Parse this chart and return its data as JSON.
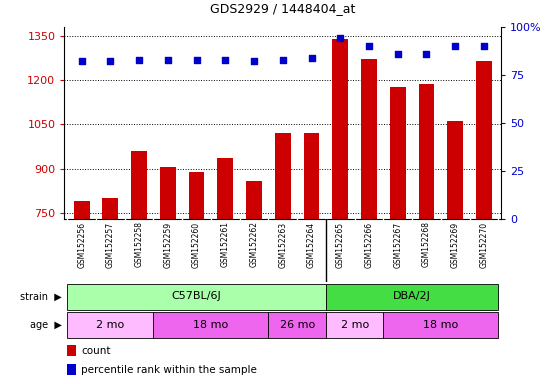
{
  "title": "GDS2929 / 1448404_at",
  "samples": [
    "GSM152256",
    "GSM152257",
    "GSM152258",
    "GSM152259",
    "GSM152260",
    "GSM152261",
    "GSM152262",
    "GSM152263",
    "GSM152264",
    "GSM152265",
    "GSM152266",
    "GSM152267",
    "GSM152268",
    "GSM152269",
    "GSM152270"
  ],
  "counts": [
    790,
    800,
    960,
    905,
    888,
    935,
    858,
    1020,
    1020,
    1340,
    1270,
    1175,
    1185,
    1060,
    1265
  ],
  "percentiles": [
    82,
    82,
    83,
    83,
    83,
    83,
    82,
    83,
    84,
    94,
    90,
    86,
    86,
    90,
    90
  ],
  "ylim_left": [
    730,
    1380
  ],
  "ylim_right": [
    0,
    100
  ],
  "yticks_left": [
    750,
    900,
    1050,
    1200,
    1350
  ],
  "yticks_right": [
    0,
    25,
    50,
    75,
    100
  ],
  "right_tick_labels": [
    "0",
    "25",
    "50",
    "75",
    "100%"
  ],
  "bar_color": "#cc0000",
  "dot_color": "#0000cc",
  "label_bg_color": "#d0d0d0",
  "strain_groups": [
    {
      "label": "C57BL/6J",
      "start": 0,
      "end": 9,
      "color": "#aaffaa"
    },
    {
      "label": "DBA/2J",
      "start": 9,
      "end": 15,
      "color": "#44dd44"
    }
  ],
  "age_groups": [
    {
      "label": "2 mo",
      "start": 0,
      "end": 3,
      "color": "#ffbbff"
    },
    {
      "label": "18 mo",
      "start": 3,
      "end": 7,
      "color": "#ee66ee"
    },
    {
      "label": "26 mo",
      "start": 7,
      "end": 9,
      "color": "#ee66ee"
    },
    {
      "label": "2 mo",
      "start": 9,
      "end": 11,
      "color": "#ffbbff"
    },
    {
      "label": "18 mo",
      "start": 11,
      "end": 15,
      "color": "#ee66ee"
    }
  ],
  "grid_color": "#000000",
  "tick_label_color": "#cc0000",
  "right_tick_color": "#0000cc",
  "legend_items": [
    {
      "color": "#cc0000",
      "label": "count"
    },
    {
      "color": "#0000cc",
      "label": "percentile rank within the sample"
    }
  ]
}
